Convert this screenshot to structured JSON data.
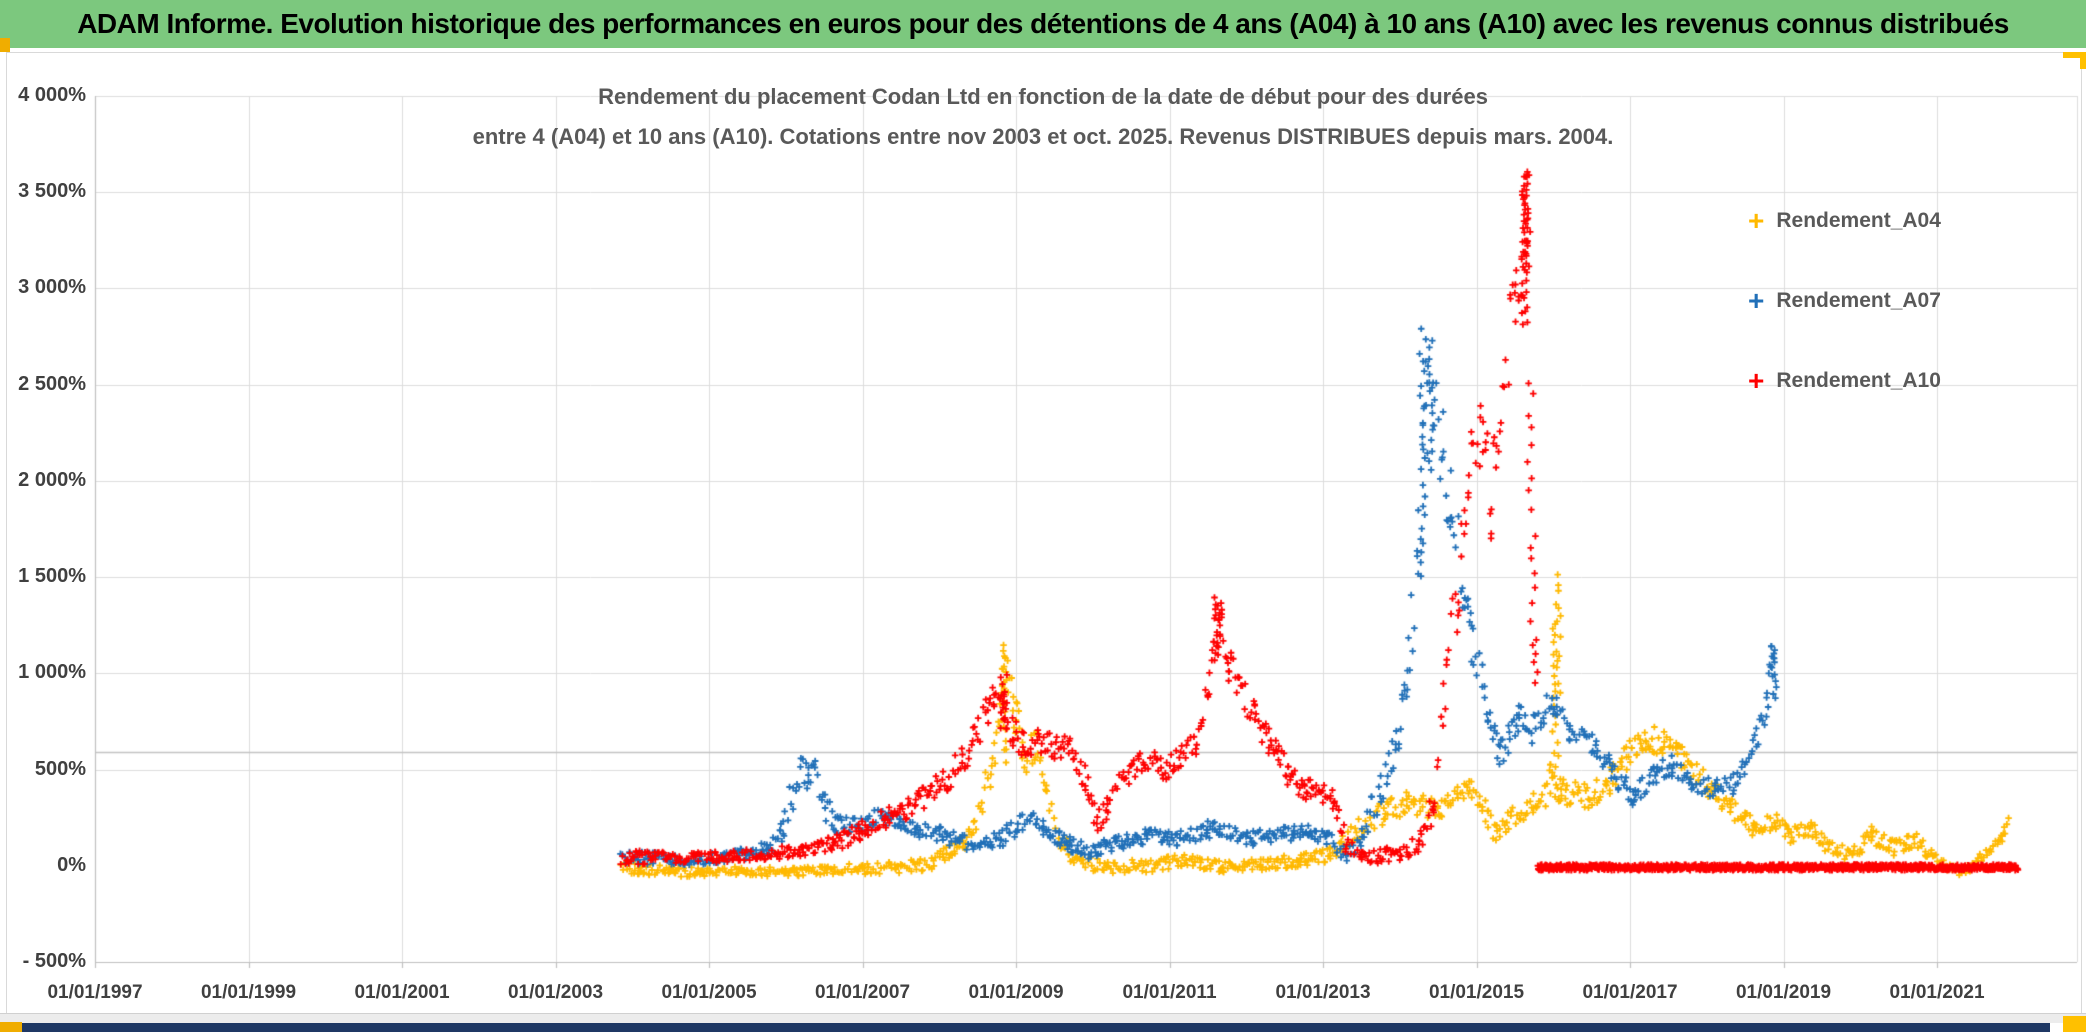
{
  "banner": {
    "text": "ADAM Informe. Evolution historique des performances en euros pour des détentions de 4 ans (A04) à 10 ans (A10) avec les revenus connus distribués",
    "bg_color": "#7CC87E"
  },
  "chart": {
    "title_line1": "Rendement du placement Codan Ltd en fonction de la date de début pour des durées",
    "title_line2": "entre 4 (A04) et 10 ans (A10). Cotations entre nov 2003 et oct. 2025. Revenus DISTRIBUES depuis mars. 2004.",
    "legend": [
      {
        "label": "Rendement_A04",
        "color": "#FFB900"
      },
      {
        "label": "Rendement_A07",
        "color": "#2170B8"
      },
      {
        "label": "Rendement_A10",
        "color": "#FE0000"
      }
    ],
    "y_axis": {
      "labels": [
        "4 000%",
        "3 500%",
        "3 000%",
        "2 500%",
        "2 000%",
        "1 500%",
        "1 000%",
        "500%",
        "0%",
        "- 500%"
      ],
      "values": [
        4000,
        3500,
        3000,
        2500,
        2000,
        1500,
        1000,
        500,
        0,
        -500
      ],
      "gridline_values": [
        4000,
        3500,
        3000,
        2500,
        2000,
        1500,
        1000,
        500
      ],
      "extra_line_value": 590,
      "min": -500,
      "max": 4000
    },
    "x_axis": {
      "labels": [
        "01/01/1997",
        "01/01/1999",
        "01/01/2001",
        "01/01/2003",
        "01/01/2005",
        "01/01/2007",
        "01/01/2009",
        "01/01/2011",
        "01/01/2013",
        "01/01/2015",
        "01/01/2017",
        "01/01/2019",
        "01/01/2021"
      ],
      "start_year": 1997,
      "tick_step_years": 2
    }
  },
  "chart_data": {
    "type": "scatter",
    "marker": "plus",
    "x_range_years": [
      1997,
      2022.8
    ],
    "y_range_pct": [
      -500,
      4000
    ],
    "grid": true,
    "legend_position": "right",
    "series": [
      {
        "name": "Rendement_A04",
        "color": "#FFB900",
        "keypoints": [
          [
            2003.85,
            10,
            45
          ],
          [
            2004.1,
            -15,
            30
          ],
          [
            2004.5,
            -30,
            25
          ],
          [
            2005.0,
            -35,
            25
          ],
          [
            2005.5,
            -25,
            25
          ],
          [
            2006.0,
            -35,
            25
          ],
          [
            2006.5,
            -20,
            25
          ],
          [
            2007.0,
            -15,
            28
          ],
          [
            2007.5,
            -10,
            30
          ],
          [
            2007.9,
            15,
            35
          ],
          [
            2008.2,
            80,
            45
          ],
          [
            2008.45,
            190,
            60
          ],
          [
            2008.6,
            400,
            90
          ],
          [
            2008.72,
            600,
            130
          ],
          [
            2008.82,
            950,
            160
          ],
          [
            2008.9,
            1000,
            130
          ],
          [
            2009.0,
            780,
            120
          ],
          [
            2009.1,
            560,
            90
          ],
          [
            2009.25,
            620,
            80
          ],
          [
            2009.4,
            400,
            80
          ],
          [
            2009.55,
            150,
            60
          ],
          [
            2009.8,
            25,
            40
          ],
          [
            2010.2,
            -10,
            35
          ],
          [
            2010.7,
            0,
            35
          ],
          [
            2011.2,
            25,
            35
          ],
          [
            2011.7,
            -10,
            32
          ],
          [
            2012.2,
            10,
            32
          ],
          [
            2012.7,
            25,
            35
          ],
          [
            2013.1,
            55,
            40
          ],
          [
            2013.45,
            180,
            55
          ],
          [
            2013.8,
            280,
            60
          ],
          [
            2014.1,
            330,
            60
          ],
          [
            2014.5,
            295,
            60
          ],
          [
            2014.9,
            400,
            65
          ],
          [
            2015.05,
            330,
            60
          ],
          [
            2015.25,
            165,
            50
          ],
          [
            2015.45,
            240,
            60
          ],
          [
            2015.75,
            330,
            70
          ],
          [
            2015.97,
            430,
            100
          ],
          [
            2016.1,
            390,
            70
          ],
          [
            2016.45,
            360,
            60
          ],
          [
            2016.7,
            420,
            60
          ],
          [
            2016.95,
            560,
            70
          ],
          [
            2017.2,
            660,
            70
          ],
          [
            2017.45,
            645,
            70
          ],
          [
            2017.7,
            540,
            70
          ],
          [
            2018.0,
            420,
            60
          ],
          [
            2018.3,
            300,
            55
          ],
          [
            2018.6,
            205,
            50
          ],
          [
            2018.9,
            235,
            50
          ],
          [
            2019.1,
            160,
            45
          ],
          [
            2019.35,
            190,
            45
          ],
          [
            2019.6,
            90,
            40
          ],
          [
            2019.9,
            65,
            40
          ],
          [
            2020.15,
            160,
            45
          ],
          [
            2020.45,
            90,
            40
          ],
          [
            2020.7,
            140,
            42
          ],
          [
            2020.95,
            35,
            35
          ],
          [
            2021.2,
            -30,
            30
          ],
          [
            2021.45,
            5,
            30
          ],
          [
            2021.7,
            60,
            40
          ],
          [
            2021.85,
            165,
            50
          ],
          [
            2021.93,
            215,
            45
          ]
        ],
        "columns": [
          [
            2016.03,
            430,
            1500,
            26
          ],
          [
            2016.06,
            900,
            1300,
            8
          ],
          [
            2008.85,
            550,
            1150,
            18
          ]
        ]
      },
      {
        "name": "Rendement_A07",
        "color": "#2170B8",
        "keypoints": [
          [
            2003.85,
            35,
            45
          ],
          [
            2004.3,
            40,
            30
          ],
          [
            2004.8,
            30,
            30
          ],
          [
            2005.2,
            50,
            30
          ],
          [
            2005.5,
            62,
            32
          ],
          [
            2005.78,
            95,
            42
          ],
          [
            2005.97,
            200,
            70
          ],
          [
            2006.1,
            400,
            110
          ],
          [
            2006.2,
            505,
            65
          ],
          [
            2006.3,
            455,
            80
          ],
          [
            2006.38,
            500,
            55
          ],
          [
            2006.52,
            300,
            85
          ],
          [
            2006.68,
            215,
            50
          ],
          [
            2006.9,
            205,
            45
          ],
          [
            2007.15,
            250,
            50
          ],
          [
            2007.4,
            230,
            45
          ],
          [
            2007.7,
            185,
            45
          ],
          [
            2008.0,
            160,
            45
          ],
          [
            2008.3,
            122,
            40
          ],
          [
            2008.55,
            100,
            40
          ],
          [
            2008.8,
            140,
            45
          ],
          [
            2009.0,
            200,
            50
          ],
          [
            2009.2,
            240,
            50
          ],
          [
            2009.45,
            170,
            45
          ],
          [
            2009.7,
            112,
            40
          ],
          [
            2009.95,
            70,
            38
          ],
          [
            2010.3,
            122,
            40
          ],
          [
            2010.7,
            150,
            40
          ],
          [
            2011.1,
            140,
            40
          ],
          [
            2011.5,
            190,
            45
          ],
          [
            2011.8,
            170,
            42
          ],
          [
            2012.1,
            142,
            40
          ],
          [
            2012.5,
            162,
            40
          ],
          [
            2012.8,
            172,
            45
          ],
          [
            2013.05,
            150,
            42
          ],
          [
            2013.3,
            62,
            38
          ],
          [
            2013.5,
            150,
            55
          ],
          [
            2013.75,
            400,
            90
          ],
          [
            2013.95,
            610,
            100
          ],
          [
            2014.1,
            920,
            130
          ],
          [
            2014.22,
            1600,
            280
          ],
          [
            2014.33,
            2350,
            300
          ],
          [
            2014.42,
            2520,
            220
          ],
          [
            2014.55,
            2150,
            220
          ],
          [
            2014.68,
            1880,
            190
          ],
          [
            2014.82,
            1500,
            160
          ],
          [
            2014.95,
            1160,
            130
          ],
          [
            2015.1,
            910,
            110
          ],
          [
            2015.3,
            565,
            75
          ],
          [
            2015.55,
            765,
            75
          ],
          [
            2015.75,
            705,
            80
          ],
          [
            2016.0,
            860,
            75
          ],
          [
            2016.2,
            685,
            62
          ],
          [
            2016.5,
            645,
            60
          ],
          [
            2016.8,
            470,
            58
          ],
          [
            2017.05,
            355,
            52
          ],
          [
            2017.3,
            480,
            55
          ],
          [
            2017.55,
            520,
            55
          ],
          [
            2017.8,
            445,
            52
          ],
          [
            2018.1,
            400,
            50
          ],
          [
            2018.35,
            425,
            52
          ],
          [
            2018.6,
            600,
            75
          ],
          [
            2018.78,
            860,
            95
          ],
          [
            2018.88,
            1070,
            70
          ]
        ],
        "columns": [
          [
            2014.3,
            1500,
            2800,
            22
          ],
          [
            2014.4,
            2050,
            2700,
            14
          ],
          [
            2018.88,
            880,
            1150,
            12
          ]
        ]
      },
      {
        "name": "Rendement_A10",
        "color": "#FE0000",
        "keypoints": [
          [
            2003.85,
            55,
            50
          ],
          [
            2004.3,
            42,
            32
          ],
          [
            2004.8,
            38,
            30
          ],
          [
            2005.3,
            52,
            30
          ],
          [
            2005.8,
            62,
            32
          ],
          [
            2006.2,
            82,
            36
          ],
          [
            2006.6,
            112,
            42
          ],
          [
            2006.95,
            172,
            46
          ],
          [
            2007.3,
            252,
            56
          ],
          [
            2007.6,
            302,
            56
          ],
          [
            2007.9,
            392,
            72
          ],
          [
            2008.1,
            432,
            72
          ],
          [
            2008.3,
            562,
            82
          ],
          [
            2008.45,
            642,
            82
          ],
          [
            2008.6,
            782,
            92
          ],
          [
            2008.72,
            872,
            75
          ],
          [
            2008.82,
            822,
            72
          ],
          [
            2008.95,
            702,
            82
          ],
          [
            2009.1,
            622,
            72
          ],
          [
            2009.3,
            652,
            72
          ],
          [
            2009.5,
            602,
            72
          ],
          [
            2009.7,
            652,
            72
          ],
          [
            2009.9,
            452,
            85
          ],
          [
            2010.05,
            215,
            65
          ],
          [
            2010.2,
            322,
            62
          ],
          [
            2010.4,
            452,
            62
          ],
          [
            2010.6,
            522,
            62
          ],
          [
            2010.8,
            562,
            62
          ],
          [
            2010.95,
            482,
            62
          ],
          [
            2011.15,
            562,
            62
          ],
          [
            2011.35,
            645,
            75
          ],
          [
            2011.5,
            905,
            115
          ],
          [
            2011.6,
            1205,
            125
          ],
          [
            2011.68,
            1285,
            85
          ],
          [
            2011.78,
            1055,
            95
          ],
          [
            2011.9,
            955,
            85
          ],
          [
            2012.1,
            782,
            82
          ],
          [
            2012.3,
            652,
            72
          ],
          [
            2012.55,
            482,
            62
          ],
          [
            2012.75,
            392,
            56
          ],
          [
            2012.95,
            402,
            56
          ],
          [
            2013.15,
            332,
            52
          ],
          [
            2013.3,
            122,
            52
          ],
          [
            2013.5,
            62,
            42
          ],
          [
            2013.75,
            52,
            40
          ],
          [
            2014.0,
            62,
            40
          ],
          [
            2014.25,
            112,
            48
          ],
          [
            2014.45,
            320,
            100
          ],
          [
            2014.6,
            850,
            240
          ],
          [
            2014.75,
            1450,
            260
          ],
          [
            2014.9,
            2050,
            230
          ],
          [
            2015.05,
            2260,
            190
          ],
          [
            2015.2,
            1950,
            260
          ],
          [
            2015.35,
            2450,
            310
          ],
          [
            2015.5,
            2960,
            170
          ],
          [
            2015.6,
            3250,
            240
          ],
          [
            2015.67,
            3350,
            230
          ]
        ],
        "columns": [
          [
            2011.62,
            1080,
            1390,
            14
          ],
          [
            2008.84,
            700,
            1000,
            12
          ],
          [
            2015.63,
            2800,
            3620,
            30
          ],
          [
            2015.66,
            3080,
            3600,
            18
          ],
          [
            2015.7,
            1850,
            2520,
            9
          ],
          [
            2015.735,
            1280,
            1730,
            7
          ],
          [
            2015.77,
            960,
            1190,
            6
          ]
        ],
        "flat_segment": {
          "start_year": 2015.8,
          "end_year": 2022.05,
          "value": -8,
          "spread": 15
        }
      }
    ]
  },
  "footer": {
    "strip_color": "#ECECEC",
    "navy_bar_color": "#1F3864",
    "accent_color": "#F0AD00",
    "accent_color_bright": "#FFC000"
  }
}
